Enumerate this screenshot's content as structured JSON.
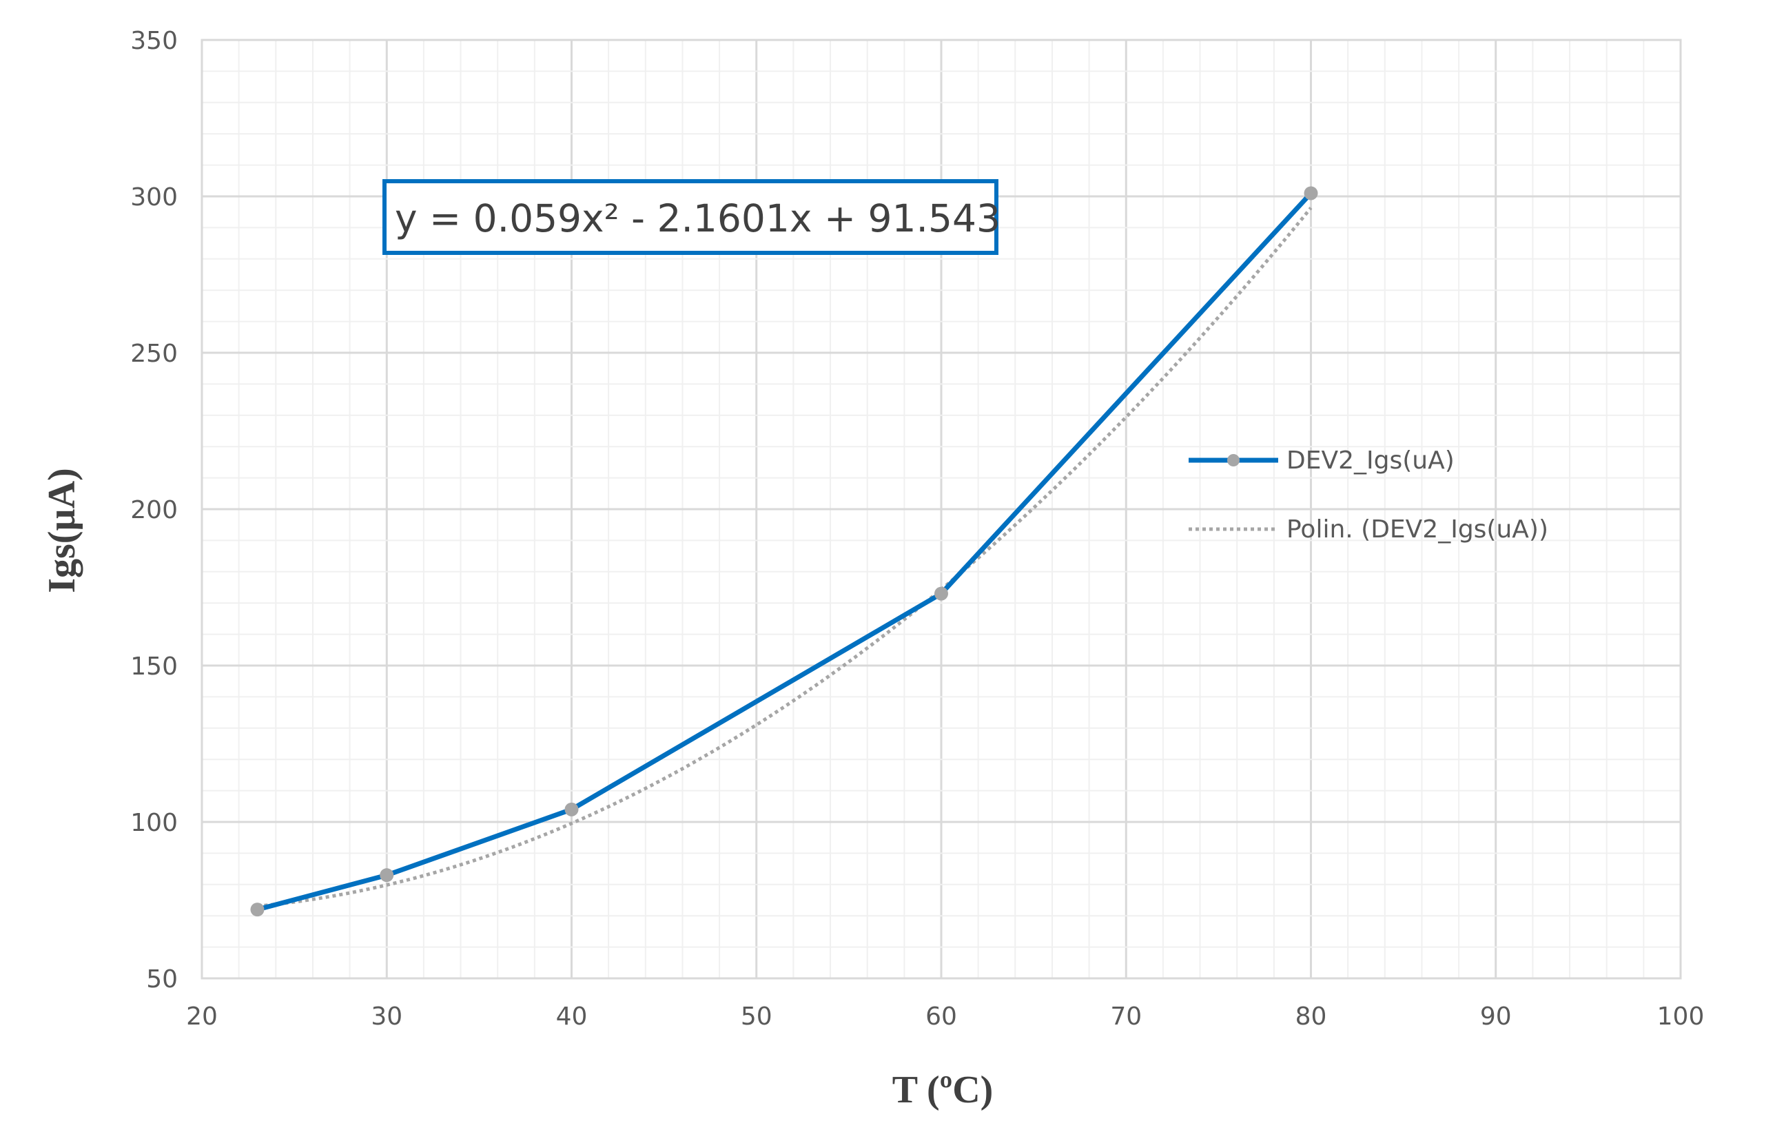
{
  "chart_data": {
    "type": "line",
    "xlabel": "T (ºC)",
    "ylabel": "Igs(µA)",
    "xlim": [
      20,
      100
    ],
    "ylim": [
      50,
      350
    ],
    "x_ticks": [
      20,
      30,
      40,
      50,
      60,
      70,
      80,
      90,
      100
    ],
    "y_ticks": [
      50,
      100,
      150,
      200,
      250,
      300,
      350
    ],
    "x_minor_step": 2,
    "y_minor_step": 10,
    "grid": true,
    "legend_position": "right",
    "series": [
      {
        "name": "DEV2_Igs(uA)",
        "x": [
          23,
          30,
          40,
          60,
          80
        ],
        "values": [
          72,
          83,
          104,
          173,
          301
        ],
        "color": "#0070C0",
        "marker_color": "#A6A6A6"
      }
    ],
    "trendline": {
      "name": "Polin. (DEV2_Igs(uA))",
      "type": "polynomial",
      "coefficients": [
        0.059,
        -2.1601,
        91.543
      ],
      "equation": "y = 0.059x² - 2.1601x + 91.543",
      "color": "#A6A6A6"
    }
  }
}
